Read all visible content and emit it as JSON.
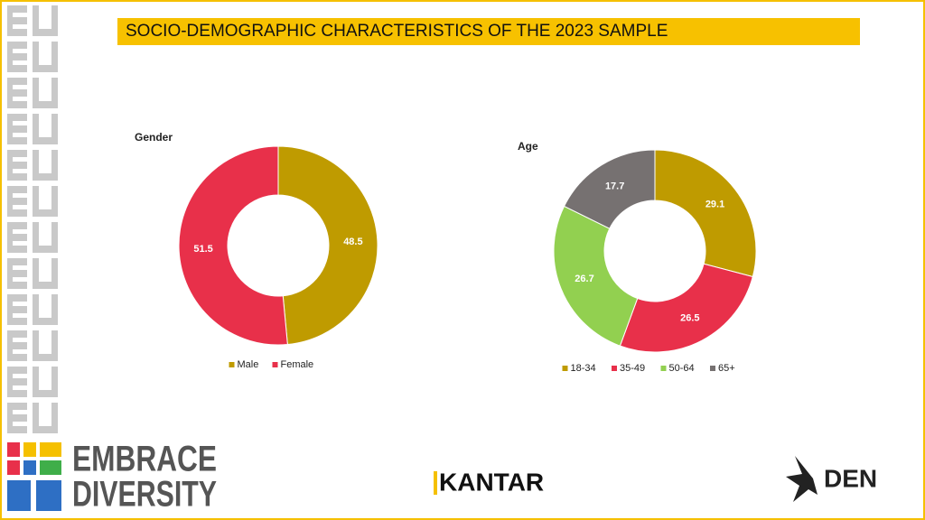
{
  "header": {
    "title": "SOCIO-DEMOGRAPHIC CHARACTERISTICS OF THE 2023 SAMPLE"
  },
  "chart_data": [
    {
      "type": "donut",
      "title": "Gender",
      "categories": [
        "Male",
        "Female"
      ],
      "values": [
        48.5,
        51.5
      ],
      "colors": [
        "#bf9b00",
        "#e8304a"
      ],
      "legend": "bottom"
    },
    {
      "type": "donut",
      "title": "Age",
      "categories": [
        "18-34",
        "35-49",
        "50-64",
        "65+"
      ],
      "values": [
        29.1,
        26.5,
        26.7,
        17.7
      ],
      "colors": [
        "#bf9b00",
        "#e8304a",
        "#92d050",
        "#767171"
      ],
      "legend": "bottom"
    }
  ],
  "logos": {
    "embrace_line1": "EMBRACE",
    "embrace_line2": "DIVERSITY",
    "kantar": "KANTAR",
    "den": "DEN"
  }
}
